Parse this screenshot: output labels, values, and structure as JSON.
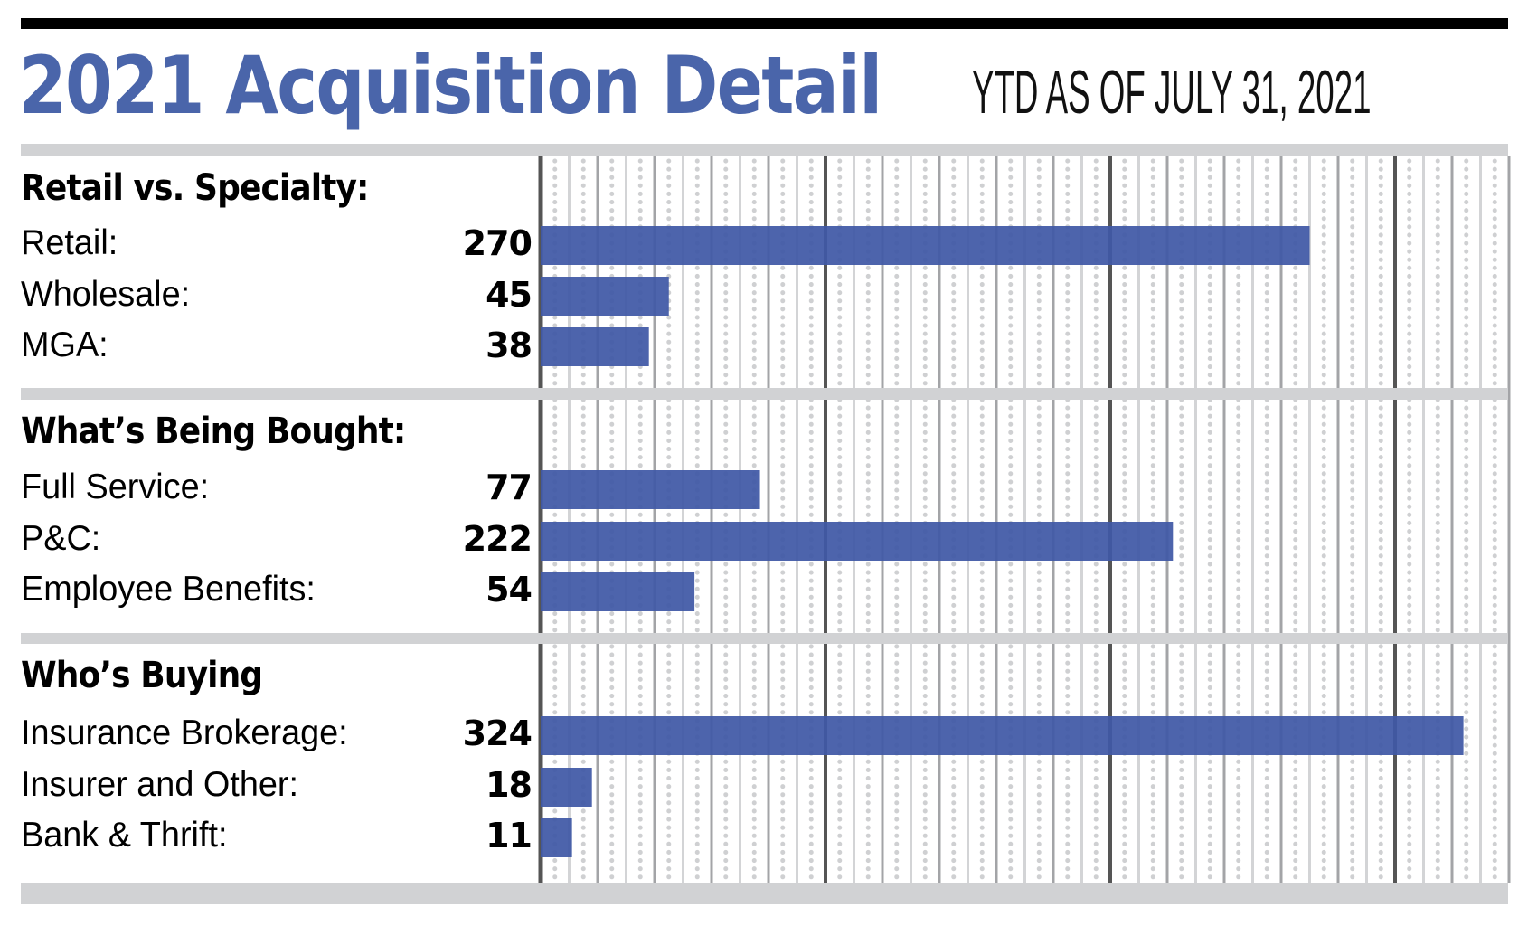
{
  "header": {
    "title": "2021 Acquisition Detail",
    "subtitle": "YTD AS OF JULY 31, 2021"
  },
  "colors": {
    "title": "#4a65aa",
    "bar": "#3f58a6",
    "band": "#d1d2d4",
    "axis": "#555555",
    "grid_medium": "#a3a4a7",
    "grid_light": "#d3d4d6",
    "dot": "#cfd0d2"
  },
  "chart_data": {
    "type": "bar",
    "orientation": "horizontal",
    "title": "2021 Acquisition Detail",
    "subtitle": "YTD AS OF JULY 31, 2021",
    "xlim": [
      0,
      340
    ],
    "grid": true,
    "grid_major_step": 100,
    "grid_medium_step": 20,
    "grid_minor_step": 10,
    "groups": [
      {
        "heading": "Retail vs. Specialty:",
        "categories": [
          "Retail:",
          "Wholesale:",
          "MGA:"
        ],
        "values": [
          270,
          45,
          38
        ]
      },
      {
        "heading": "What’s Being Bought:",
        "categories": [
          "Full Service:",
          "P&C:",
          "Employee Benefits:"
        ],
        "values": [
          77,
          222,
          54
        ]
      },
      {
        "heading": "Who’s Buying",
        "categories": [
          "Insurance Brokerage:",
          "Insurer and Other:",
          "Bank & Thrift:"
        ],
        "values": [
          324,
          18,
          11
        ]
      }
    ]
  }
}
